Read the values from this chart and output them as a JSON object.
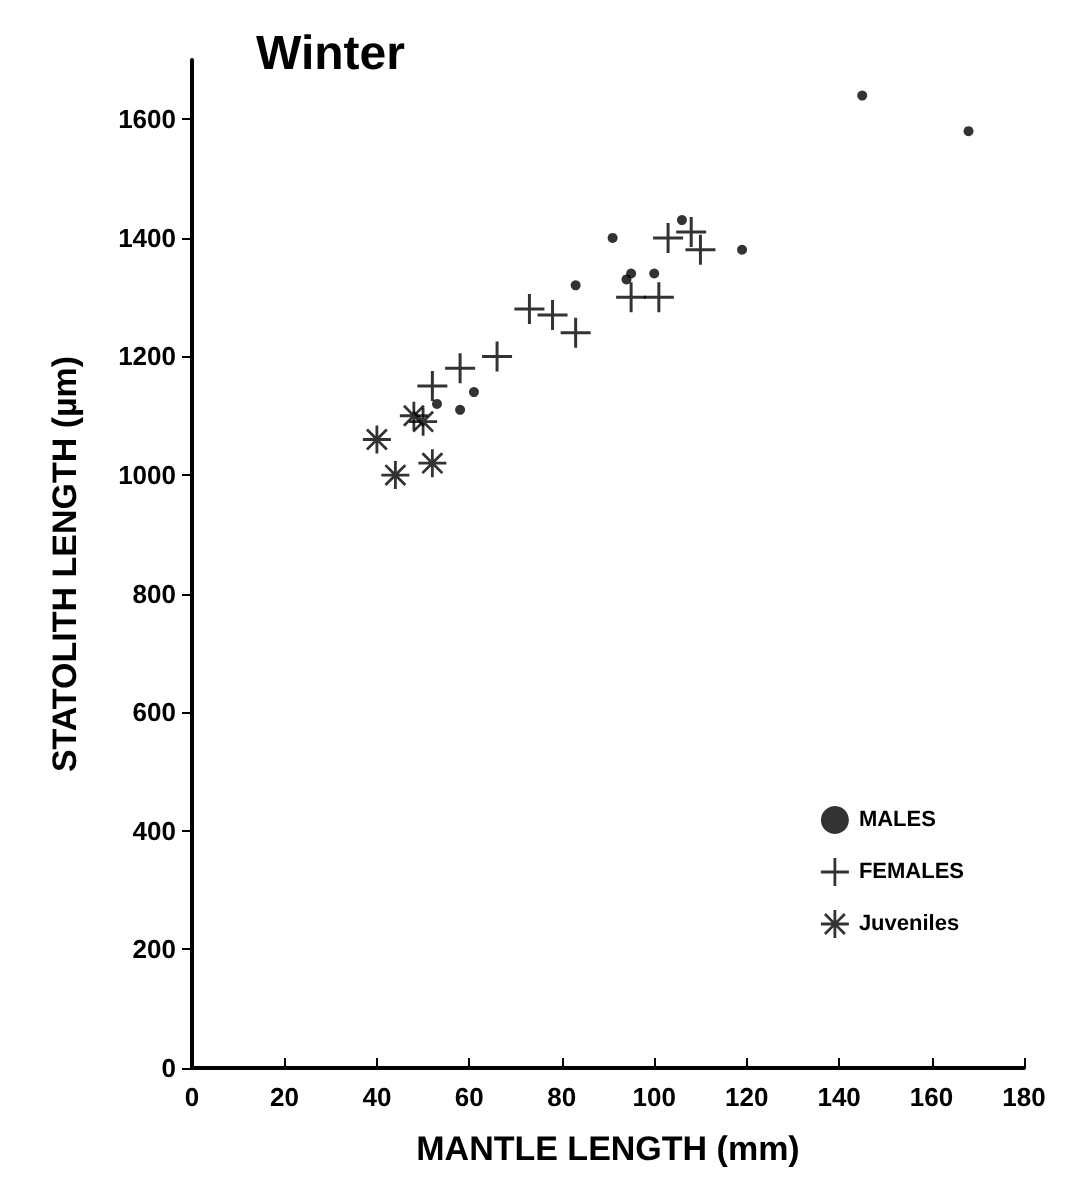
{
  "chart_data": {
    "type": "scatter",
    "title": "Winter",
    "xlabel": "MANTLE LENGTH (mm)",
    "ylabel": "STATOLITH LENGTH (µm)",
    "xlim": [
      0,
      180
    ],
    "xticks": [
      0,
      20,
      40,
      60,
      80,
      100,
      120,
      140,
      160,
      180
    ],
    "ylim": [
      0,
      1700
    ],
    "yticks": [
      0,
      200,
      400,
      600,
      800,
      1000,
      1200,
      1400,
      1600
    ],
    "grid": false,
    "legend": "bottom right",
    "series": [
      {
        "name": "MALES",
        "color": "#000000",
        "marker": "circle",
        "x": [
          145,
          168,
          91,
          106,
          119,
          83,
          95,
          94,
          100,
          53,
          58,
          61
        ],
        "values": [
          1640,
          1580,
          1400,
          1430,
          1380,
          1320,
          1340,
          1330,
          1340,
          1120,
          1110,
          1140
        ]
      },
      {
        "name": "FEMALES",
        "color": "#000000",
        "marker": "cross",
        "x": [
          73,
          78,
          83,
          66,
          58,
          52,
          95,
          101,
          103,
          108,
          110
        ],
        "values": [
          1280,
          1270,
          1240,
          1200,
          1180,
          1150,
          1300,
          1300,
          1400,
          1410,
          1380
        ]
      },
      {
        "name": "Juveniles",
        "color": "#000000",
        "marker": "star",
        "x": [
          40,
          44,
          48,
          50,
          52
        ],
        "values": [
          1060,
          1000,
          1100,
          1090,
          1020
        ]
      }
    ]
  }
}
